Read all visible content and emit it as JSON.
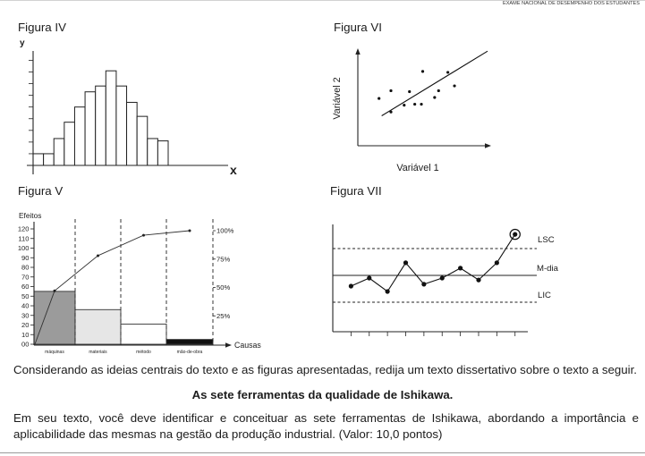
{
  "header": {
    "exam_name": "EXAME NACIONAL DE DESEMPENHO DOS ESTUDANTES"
  },
  "chart_data": [
    {
      "title": "Figura IV",
      "type": "bar",
      "subtype": "histogram",
      "values": [
        1,
        1,
        2.3,
        3.7,
        5,
        6.3,
        6.8,
        8.1,
        6.8,
        5.4,
        4.2,
        2.3,
        2.1
      ],
      "xlabel": "x",
      "ylabel": "y",
      "ylim": [
        0,
        9.8
      ],
      "grid": false
    },
    {
      "title": "Figura V",
      "type": "bar",
      "subtype": "pareto",
      "categories": [
        "máquinas",
        "materiais",
        "método",
        "mão-de-obra"
      ],
      "values": [
        55,
        36,
        21,
        5
      ],
      "cumulative_percent": [
        47,
        78,
        96,
        100
      ],
      "ylabel": "Efeitos",
      "xlabel": "Causas",
      "ylim": [
        0,
        120
      ],
      "yticks": [
        0,
        10,
        20,
        30,
        40,
        50,
        60,
        70,
        80,
        90,
        100,
        110,
        120
      ],
      "ytick_labels": [
        "00",
        "10",
        "20",
        "30",
        "40",
        "50",
        "60",
        "70",
        "80",
        "90",
        "100",
        "110",
        "120"
      ],
      "y2lim": [
        0,
        100
      ],
      "y2ticks": [
        25,
        50,
        75,
        100
      ],
      "y2tick_labels": [
        "25%",
        "50%",
        "75%",
        "100%"
      ],
      "bar_colors": [
        "#9b9b9b",
        "#e6e6e6",
        "#ffffff",
        "#111111"
      ],
      "grid": false
    },
    {
      "title": "Figura VI",
      "type": "scatter",
      "x": [
        1.6,
        2.5,
        2.5,
        3.5,
        3.9,
        4.3,
        4.8,
        4.9,
        5.8,
        6.1,
        6.8,
        7.3
      ],
      "y": [
        4.9,
        5.7,
        3.5,
        4.2,
        5.6,
        4.3,
        4.3,
        7.7,
        5.0,
        5.7,
        7.6,
        6.2
      ],
      "trend_line": {
        "x": [
          1.8,
          9.8
        ],
        "y": [
          3.1,
          9.8
        ]
      },
      "xlabel": "Variável 1",
      "ylabel": "Variável 2",
      "xlim": [
        0,
        10
      ],
      "ylim": [
        0,
        10
      ],
      "grid": false
    },
    {
      "title": "Figura VII",
      "type": "line",
      "subtype": "control-chart",
      "x": [
        1,
        2,
        3,
        4,
        5,
        6,
        7,
        8,
        9,
        10
      ],
      "values": [
        -0.4,
        -0.1,
        -0.6,
        0.47,
        -0.33,
        -0.1,
        0.27,
        -0.17,
        0.47,
        1.53
      ],
      "limits": {
        "upper": 1,
        "center": 0,
        "lower": -1
      },
      "limit_labels": {
        "upper": "LSC",
        "center": "M-dia",
        "lower": "LIC"
      },
      "highlight_x": 10,
      "xlim": [
        0,
        10.7
      ],
      "ylim": [
        -2.1,
        1.9
      ],
      "grid": false
    }
  ],
  "question": {
    "prompt": "Considerando as ideias centrais do texto e as figuras apresentadas, redija um texto dissertativo sobre o texto a seguir.",
    "topic": "As sete ferramentas da qualidade de Ishikawa.",
    "instructions_lines": [
      "Em seu texto, você deve identificar e conceituar as sete ferramentas de Ishikawa, abordando a importância e",
      "aplicabilidade das mesmas na gestão da produção industrial. (Valor: 10,0 pontos)"
    ]
  }
}
